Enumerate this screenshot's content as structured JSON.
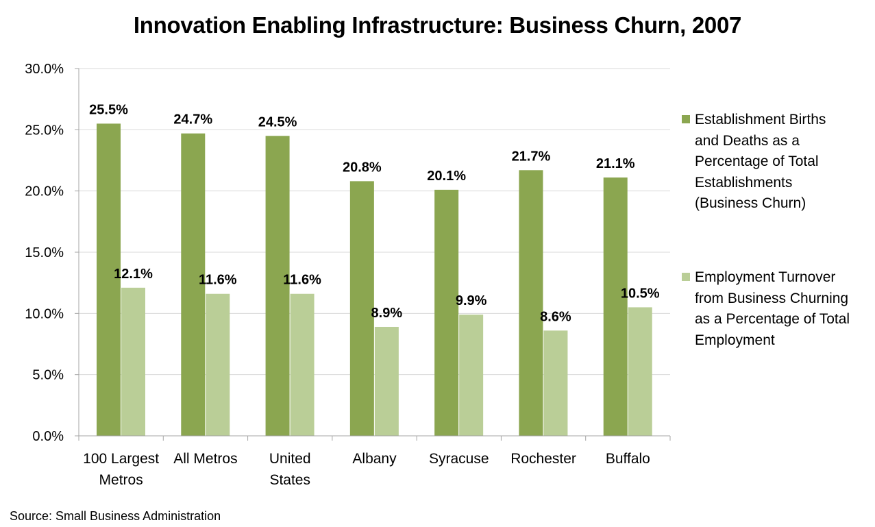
{
  "chart_data": {
    "type": "bar",
    "title": "Innovation Enabling Infrastructure: Business Churn, 2007",
    "categories": [
      [
        "100 Largest",
        "Metros"
      ],
      [
        "All Metros"
      ],
      [
        "United",
        "States"
      ],
      [
        "Albany"
      ],
      [
        "Syracuse"
      ],
      [
        "Rochester"
      ],
      [
        "Buffalo"
      ]
    ],
    "series": [
      {
        "name": "Establishment Births and Deaths as a Percentage of Total Establishments (Business Churn)",
        "name_lines": [
          "Establishment Births",
          "and Deaths as a",
          "Percentage of Total",
          "Establishments",
          "(Business Churn)"
        ],
        "color": "#8BA650",
        "values": [
          25.5,
          24.7,
          24.5,
          20.8,
          20.1,
          21.7,
          21.1
        ],
        "labels": [
          "25.5%",
          "24.7%",
          "24.5%",
          "20.8%",
          "20.1%",
          "21.7%",
          "21.1%"
        ]
      },
      {
        "name": "Employment Turnover from Business Churning as a Percentage of Total Employment",
        "name_lines": [
          "Employment Turnover",
          "from Business Churning",
          "as a Percentage of Total",
          "Employment"
        ],
        "color": "#BACE97",
        "values": [
          12.1,
          11.6,
          11.6,
          8.9,
          9.9,
          8.6,
          10.5
        ],
        "labels": [
          "12.1%",
          "11.6%",
          "11.6%",
          "8.9%",
          "9.9%",
          "8.6%",
          "10.5%"
        ]
      }
    ],
    "y_ticks": [
      0,
      5,
      10,
      15,
      20,
      25,
      30
    ],
    "y_tick_labels": [
      "0.0%",
      "5.0%",
      "10.0%",
      "15.0%",
      "20.0%",
      "25.0%",
      "30.0%"
    ],
    "ylim": [
      0,
      30
    ],
    "xlabel": "",
    "ylabel": "",
    "grid": true,
    "legend_position": "right"
  },
  "source_note": "Source: Small Business Administration"
}
